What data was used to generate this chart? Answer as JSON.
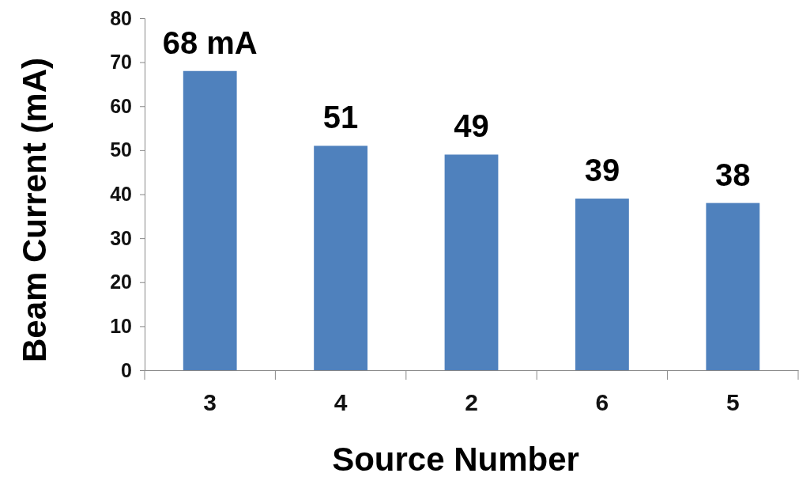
{
  "chart_data": {
    "type": "bar",
    "xlabel": "Source Number",
    "ylabel": "Beam Current (mA)",
    "categories": [
      "3",
      "4",
      "2",
      "6",
      "5"
    ],
    "values": [
      68,
      51,
      49,
      39,
      38
    ],
    "value_labels": [
      "68 mA",
      "51",
      "49",
      "39",
      "38"
    ],
    "color": "#4f81bd",
    "ylim": [
      0,
      80
    ],
    "yticks": [
      0,
      10,
      20,
      30,
      40,
      50,
      60,
      70,
      80
    ],
    "grid": false
  }
}
